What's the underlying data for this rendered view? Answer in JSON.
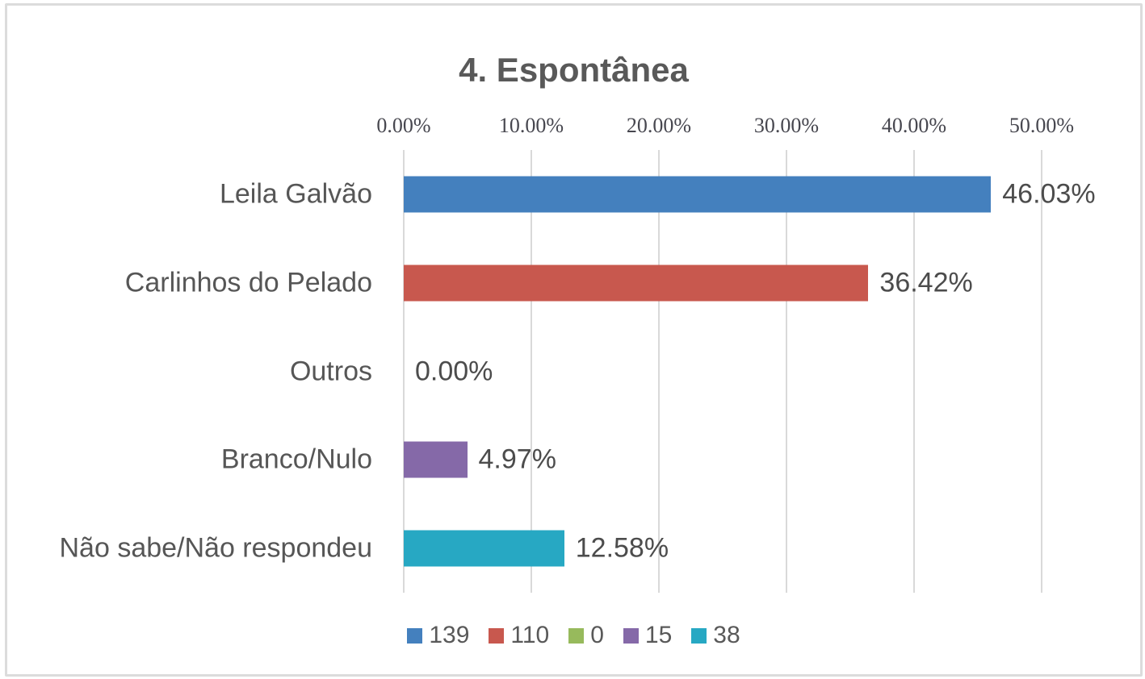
{
  "chart_data": {
    "type": "bar",
    "orientation": "horizontal",
    "title": "4. Espontânea",
    "categories": [
      "Leila Galvão",
      "Carlinhos do Pelado",
      "Outros",
      "Branco/Nulo",
      "Não sabe/Não respondeu"
    ],
    "values": [
      46.03,
      36.42,
      0.0,
      4.97,
      12.58
    ],
    "value_labels": [
      "46.03%",
      "36.42%",
      "0.00%",
      "4.97%",
      "12.58%"
    ],
    "bar_colors": [
      "#4480BE",
      "#C8584E",
      "#97BA5C",
      "#8569A8",
      "#27A8C3"
    ],
    "xlim": [
      0,
      50
    ],
    "x_tick_values": [
      0,
      10,
      20,
      30,
      40,
      50
    ],
    "x_tick_labels": [
      "0.00%",
      "10.00%",
      "20.00%",
      "30.00%",
      "40.00%",
      "50.00%"
    ],
    "xlabel": "",
    "ylabel": "",
    "grid": "vertical",
    "legend_position": "bottom",
    "legend": [
      {
        "label": "139",
        "color": "#4480BE"
      },
      {
        "label": "110",
        "color": "#C8584E"
      },
      {
        "label": "0",
        "color": "#97BA5C"
      },
      {
        "label": "15",
        "color": "#8569A8"
      },
      {
        "label": "38",
        "color": "#27A8C3"
      }
    ]
  },
  "colors": {
    "frame_border": "#DCDCDC",
    "gridline": "#D9D9D9",
    "title_text": "#595959",
    "axis_tick_text": "#47474F",
    "label_text": "#565656",
    "background": "#FFFFFF"
  }
}
